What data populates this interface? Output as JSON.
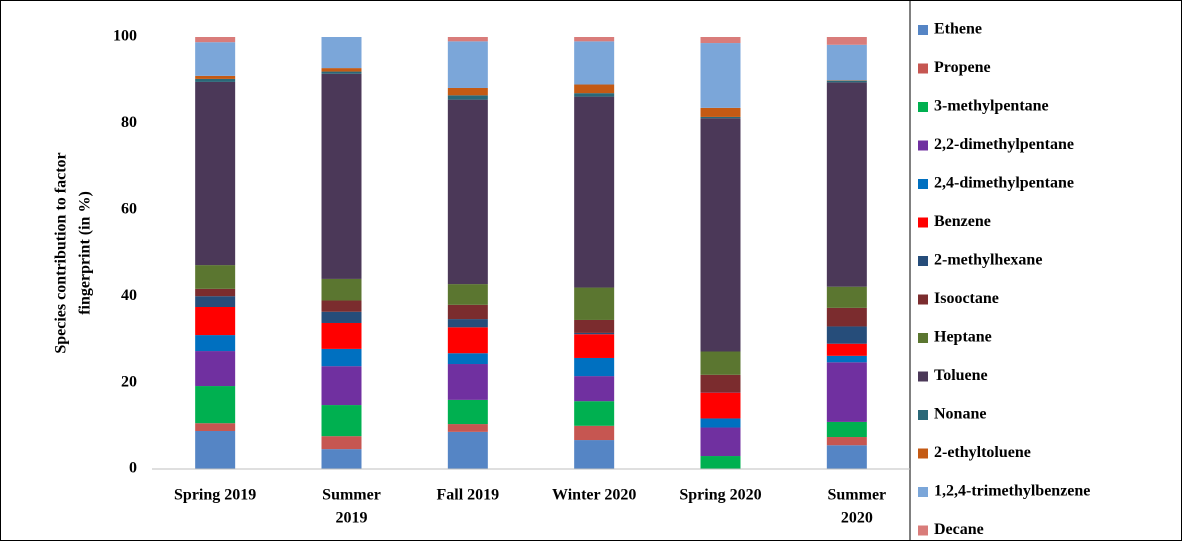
{
  "chart_data": {
    "type": "stacked_bar",
    "y_label": [
      "Species contribution to factor",
      "fingerprint  (in %)"
    ],
    "categories": [
      [
        "Spring 2019"
      ],
      [
        "Summer",
        "2019"
      ],
      [
        "Fall 2019"
      ],
      [
        "Winter 2020"
      ],
      [
        "Spring 2020"
      ],
      [
        "Summer",
        "2020"
      ]
    ],
    "ylim": [
      0,
      100
    ],
    "yticks": [
      0,
      20,
      40,
      60,
      80,
      100
    ],
    "grid": false,
    "legend": "right",
    "series": [
      {
        "name": "Ethene",
        "color": "#5585c5",
        "values": [
          8.8,
          4.6,
          8.6,
          6.7,
          0,
          5.5
        ]
      },
      {
        "name": "Propene",
        "color": "#c65651",
        "values": [
          1.8,
          3.0,
          1.8,
          3.3,
          0,
          1.9
        ]
      },
      {
        "name": "3-methylpentane",
        "color": "#00b050",
        "values": [
          8.6,
          7.2,
          5.6,
          5.7,
          3.0,
          3.5
        ]
      },
      {
        "name": "2,2-dimethylpentane",
        "color": "#7030a0",
        "values": [
          8.1,
          9.0,
          8.3,
          5.8,
          6.6,
          13.8
        ]
      },
      {
        "name": "2,4-dimethylpentane",
        "color": "#0070c0",
        "values": [
          3.7,
          4.0,
          2.5,
          4.2,
          2.1,
          1.5
        ]
      },
      {
        "name": "Benzene",
        "color": "#ff0000",
        "values": [
          6.5,
          6.0,
          6.0,
          5.5,
          6.0,
          2.8
        ]
      },
      {
        "name": "2-methylhexane",
        "color": "#264d7a",
        "values": [
          2.5,
          2.6,
          1.9,
          0.3,
          0.1,
          4.0
        ]
      },
      {
        "name": "Isooctane",
        "color": "#7b2c2e",
        "values": [
          1.7,
          2.6,
          3.3,
          3.0,
          4.0,
          4.3
        ]
      },
      {
        "name": "Heptane",
        "color": "#5b7630",
        "values": [
          5.5,
          5.0,
          4.8,
          7.5,
          5.4,
          4.9
        ]
      },
      {
        "name": "Toluene",
        "color": "#4b3858",
        "values": [
          42.4,
          47.5,
          42.7,
          44.2,
          54.0,
          47.3
        ]
      },
      {
        "name": "Nonane",
        "color": "#2a6878",
        "values": [
          0.7,
          0.5,
          1.0,
          0.8,
          0.3,
          0.4
        ]
      },
      {
        "name": "2-ethyltoluene",
        "color": "#c45a14",
        "values": [
          0.7,
          0.8,
          1.7,
          2.0,
          2.1,
          0.1
        ]
      },
      {
        "name": "1,2,4-trimethylbenzene",
        "color": "#7ba6d9",
        "values": [
          7.8,
          7.2,
          10.8,
          10.0,
          15.0,
          8.2
        ]
      },
      {
        "name": "Decane",
        "color": "#d97c7a",
        "values": [
          1.2,
          0,
          1.0,
          1.0,
          1.4,
          1.8
        ]
      }
    ]
  }
}
